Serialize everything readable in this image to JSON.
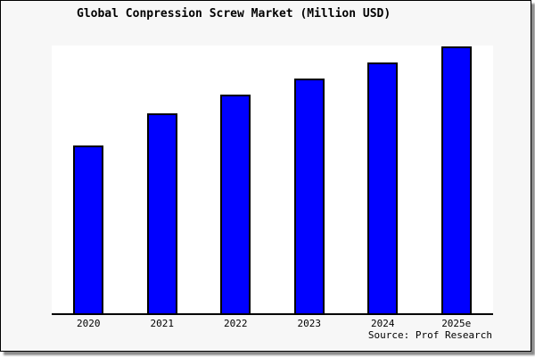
{
  "title": "Global Conpression Screw Market (Million USD)",
  "source_note": "Source: Prof Research",
  "colors": {
    "frame_background": "#f7f7f7",
    "frame_border": "#000000",
    "plot_background": "#ffffff",
    "axis_line": "#000000",
    "bar_fill": "#0000ff",
    "bar_border": "#000000",
    "shadow": "#8a8a8a",
    "text": "#000000"
  },
  "chart_data": {
    "type": "bar",
    "title": "Global Conpression Screw Market (Million USD)",
    "categories": [
      "2020",
      "2021",
      "2022",
      "2023",
      "2024",
      "2025e"
    ],
    "values": [
      63,
      75,
      82,
      88,
      94,
      100
    ],
    "values_unit": "relative index (no y-axis shown; estimated from bar heights, 2025e = 100)",
    "xlabel": "",
    "ylabel": "",
    "ylim": [
      0,
      100.3
    ],
    "grid": false,
    "legend": false,
    "annotation": "Source: Prof Research"
  }
}
